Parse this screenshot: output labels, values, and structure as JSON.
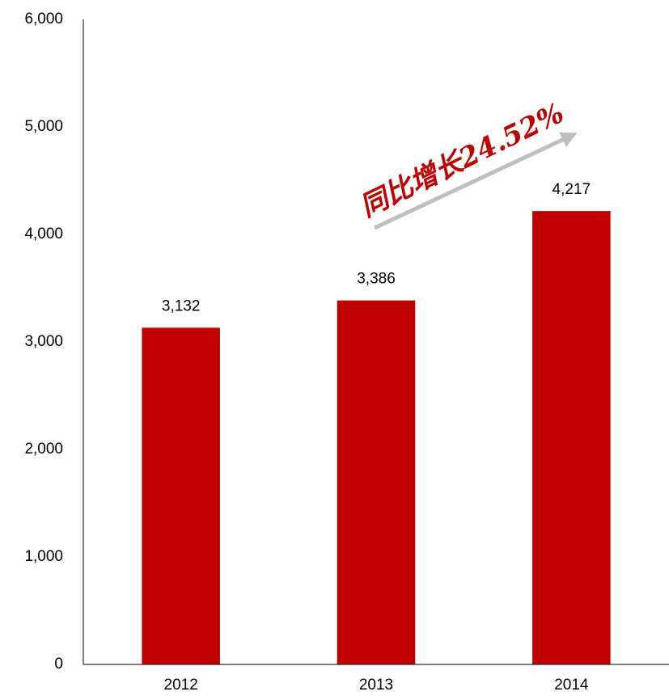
{
  "chart_data": {
    "type": "bar",
    "categories": [
      "2012",
      "2013",
      "2014"
    ],
    "values": [
      3132,
      3386,
      4217
    ],
    "value_labels": [
      "3,132",
      "3,386",
      "4,217"
    ],
    "color": "#c00000",
    "ylim": [
      0,
      6000
    ],
    "yticks": [
      0,
      {
        "value": 1000,
        "label": "1,000"
      },
      {
        "value": 2000,
        "label": "2,000"
      },
      {
        "value": 3000,
        "label": "3,000"
      },
      {
        "value": 4000,
        "label": "4,000"
      },
      {
        "value": 5000,
        "label": "5,000"
      },
      {
        "value": 6000,
        "label": "6,000"
      }
    ],
    "grid": false,
    "annotation": "同比增长24.52%"
  }
}
